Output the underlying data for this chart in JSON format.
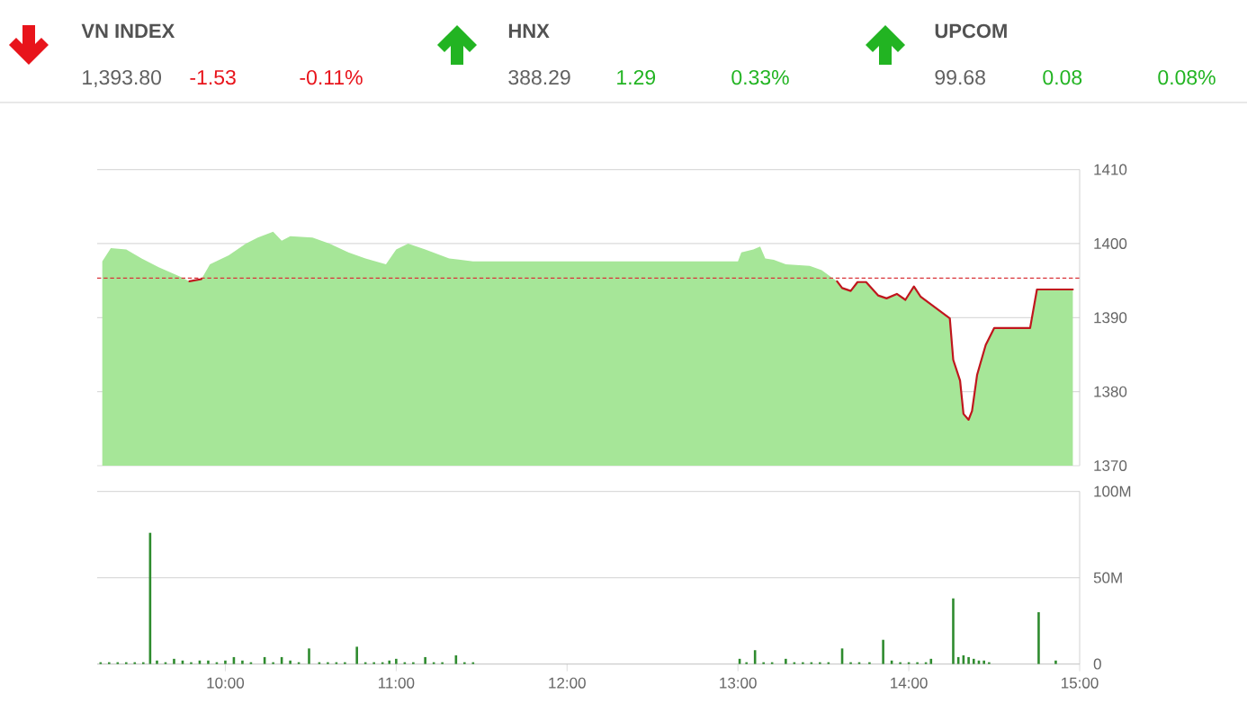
{
  "chart_data": [
    {
      "type": "other",
      "categories": [
        "VN INDEX",
        "HNX",
        "UPCOM"
      ],
      "values": [
        -1.53,
        1.29,
        0.08
      ],
      "value_labels": [
        "-1.53",
        "1.29",
        "0.08"
      ],
      "colors": [
        "#e8141b",
        "#22b422",
        "#22b422"
      ],
      "annotations": [
        "1,393.80",
        "-0.11%",
        "388.29",
        "0.33%",
        "99.68",
        "0.08%"
      ]
    },
    {
      "type": "area",
      "xlim": [
        9.25,
        15
      ],
      "ylim": [
        1370,
        1410
      ],
      "yticks": [
        1370,
        1380,
        1390,
        1400,
        1410
      ],
      "grid": "y",
      "tick_labels": "y",
      "series": [
        {
          "type": "area",
          "color": "#a6e698",
          "x": [
            9.28,
            9.33,
            9.42,
            9.51,
            9.61,
            9.73,
            9.79,
            9.86,
            9.91,
            10.02,
            10.12,
            10.19,
            10.28,
            10.33,
            10.38,
            10.51,
            10.61,
            10.72,
            10.82,
            10.94,
            11.0,
            11.07,
            11.17,
            11.31,
            11.45,
            13.0,
            13.02,
            13.09,
            13.13,
            13.16,
            13.21,
            13.28,
            13.42,
            13.49,
            13.58,
            13.61,
            13.66,
            13.7,
            13.75,
            13.82,
            13.87,
            13.93,
            13.98,
            14.03,
            14.07,
            14.24,
            14.26,
            14.3,
            14.32,
            14.35,
            14.37,
            14.4,
            14.42,
            14.45,
            14.5,
            14.71,
            14.75,
            14.96
          ],
          "values": [
            1397.6,
            1399.4,
            1399.2,
            1398.0,
            1396.8,
            1395.6,
            1394.9,
            1395.2,
            1397.2,
            1398.4,
            1400.0,
            1400.8,
            1401.6,
            1400.4,
            1401.0,
            1400.8,
            1400.0,
            1398.8,
            1398.0,
            1397.2,
            1399.2,
            1400.0,
            1399.2,
            1398.0,
            1397.6,
            1397.6,
            1398.8,
            1399.2,
            1399.6,
            1398.0,
            1397.8,
            1397.2,
            1397.0,
            1396.4,
            1394.9,
            1394.0,
            1393.6,
            1394.8,
            1394.8,
            1393.0,
            1392.6,
            1393.2,
            1392.4,
            1394.2,
            1392.8,
            1389.9,
            1384.3,
            1381.5,
            1377.0,
            1376.2,
            1377.4,
            1382.3,
            1383.9,
            1386.3,
            1388.6,
            1388.6,
            1393.8,
            1393.8
          ]
        },
        {
          "type": "line",
          "color": "#c0161d",
          "x": [
            9.79,
            9.86
          ],
          "values": [
            1394.9,
            1395.2
          ]
        },
        {
          "type": "line",
          "color": "#c0161d",
          "x": [
            13.58,
            13.61,
            13.66,
            13.7,
            13.75,
            13.82,
            13.87,
            13.93,
            13.98,
            14.03,
            14.07,
            14.24,
            14.26,
            14.3,
            14.32,
            14.35,
            14.37,
            14.4,
            14.42,
            14.45,
            14.5,
            14.71,
            14.75,
            14.96
          ],
          "values": [
            1394.9,
            1394.0,
            1393.6,
            1394.8,
            1394.8,
            1393.0,
            1392.6,
            1393.2,
            1392.4,
            1394.2,
            1392.8,
            1389.9,
            1384.3,
            1381.5,
            1377.0,
            1376.2,
            1377.4,
            1382.3,
            1383.9,
            1386.3,
            1388.6,
            1388.6,
            1393.8,
            1393.8
          ]
        }
      ],
      "ref_lines": [
        {
          "axis": "y",
          "value": 1395.33,
          "color": "#d9343a",
          "line_style": "dashed"
        }
      ]
    },
    {
      "type": "bar",
      "color": "#2e8b2e",
      "xlim": [
        9.25,
        15
      ],
      "ylim": [
        0,
        100
      ],
      "grid": "y",
      "xticks": [
        {
          "value": 10,
          "label": "10:00"
        },
        {
          "value": 11,
          "label": "11:00"
        },
        {
          "value": 12,
          "label": "12:00"
        },
        {
          "value": 13,
          "label": "13:00"
        },
        {
          "value": 14,
          "label": "14:00"
        },
        {
          "value": 15,
          "label": "15:00"
        }
      ],
      "yticks": [
        0,
        {
          "value": 50,
          "label": "50M"
        },
        {
          "value": 100,
          "label": "100M"
        }
      ],
      "x": [
        9.27,
        9.32,
        9.37,
        9.42,
        9.47,
        9.52,
        9.56,
        9.6,
        9.65,
        9.7,
        9.75,
        9.8,
        9.85,
        9.9,
        9.95,
        10.0,
        10.05,
        10.1,
        10.15,
        10.23,
        10.28,
        10.33,
        10.38,
        10.43,
        10.49,
        10.55,
        10.6,
        10.65,
        10.7,
        10.77,
        10.82,
        10.87,
        10.92,
        10.96,
        11.0,
        11.05,
        11.1,
        11.17,
        11.22,
        11.27,
        11.35,
        11.4,
        11.45,
        13.01,
        13.05,
        13.1,
        13.15,
        13.2,
        13.28,
        13.33,
        13.38,
        13.43,
        13.48,
        13.53,
        13.61,
        13.66,
        13.71,
        13.77,
        13.85,
        13.9,
        13.95,
        14.0,
        14.05,
        14.1,
        14.13,
        14.26,
        14.29,
        14.32,
        14.35,
        14.38,
        14.41,
        14.44,
        14.47,
        14.76,
        14.86
      ],
      "values": [
        1,
        1,
        1,
        1,
        1,
        1,
        76,
        2,
        1,
        3,
        2,
        1,
        2,
        2,
        1,
        2,
        4,
        2,
        1,
        4,
        1,
        4,
        2,
        1,
        9,
        1,
        1,
        1,
        1,
        10,
        1,
        1,
        1,
        2,
        3,
        1,
        1,
        4,
        1,
        1,
        5,
        1,
        1,
        3,
        1,
        8,
        1,
        1,
        3,
        1,
        1,
        1,
        1,
        1,
        9,
        1,
        1,
        1,
        14,
        2,
        1,
        1,
        1,
        1,
        3,
        38,
        4,
        5,
        4,
        3,
        2,
        2,
        1,
        30,
        2
      ]
    }
  ]
}
